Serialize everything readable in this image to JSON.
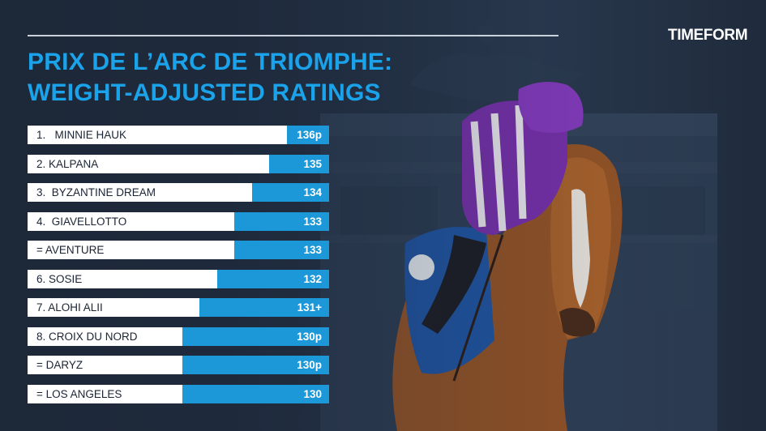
{
  "logo": "TIMEFORM",
  "title_line1": "PRIX DE L’ARC DE TRIOMPHE:",
  "title_line2": "WEIGHT-ADJUSTED RATINGS",
  "chart_data": {
    "type": "bar",
    "orientation": "horizontal",
    "categories": [
      "1.   MINNIE HAUK",
      "2. KALPANA",
      "3.  BYZANTINE DREAM",
      "4.  GIAVELLOTTO",
      "= AVENTURE",
      "6. SOSIE",
      "7. ALOHI ALII",
      "8. CROIX DU NORD",
      "= DARYZ",
      "= LOS ANGELES"
    ],
    "values": [
      136,
      135,
      134,
      133,
      133,
      132,
      131,
      130,
      130,
      130
    ],
    "value_labels": [
      "136p",
      "135",
      "134",
      "133",
      "133",
      "132",
      "131+",
      "130p",
      "130p",
      "130"
    ],
    "title": "PRIX DE L’ARC DE TRIOMPHE: WEIGHT-ADJUSTED RATINGS",
    "xlabel": "",
    "ylabel": "",
    "grid": false,
    "legend": "none",
    "colors": {
      "bar": "#1c97d8",
      "track": "#ffffff",
      "title": "#1aa3ea"
    }
  }
}
